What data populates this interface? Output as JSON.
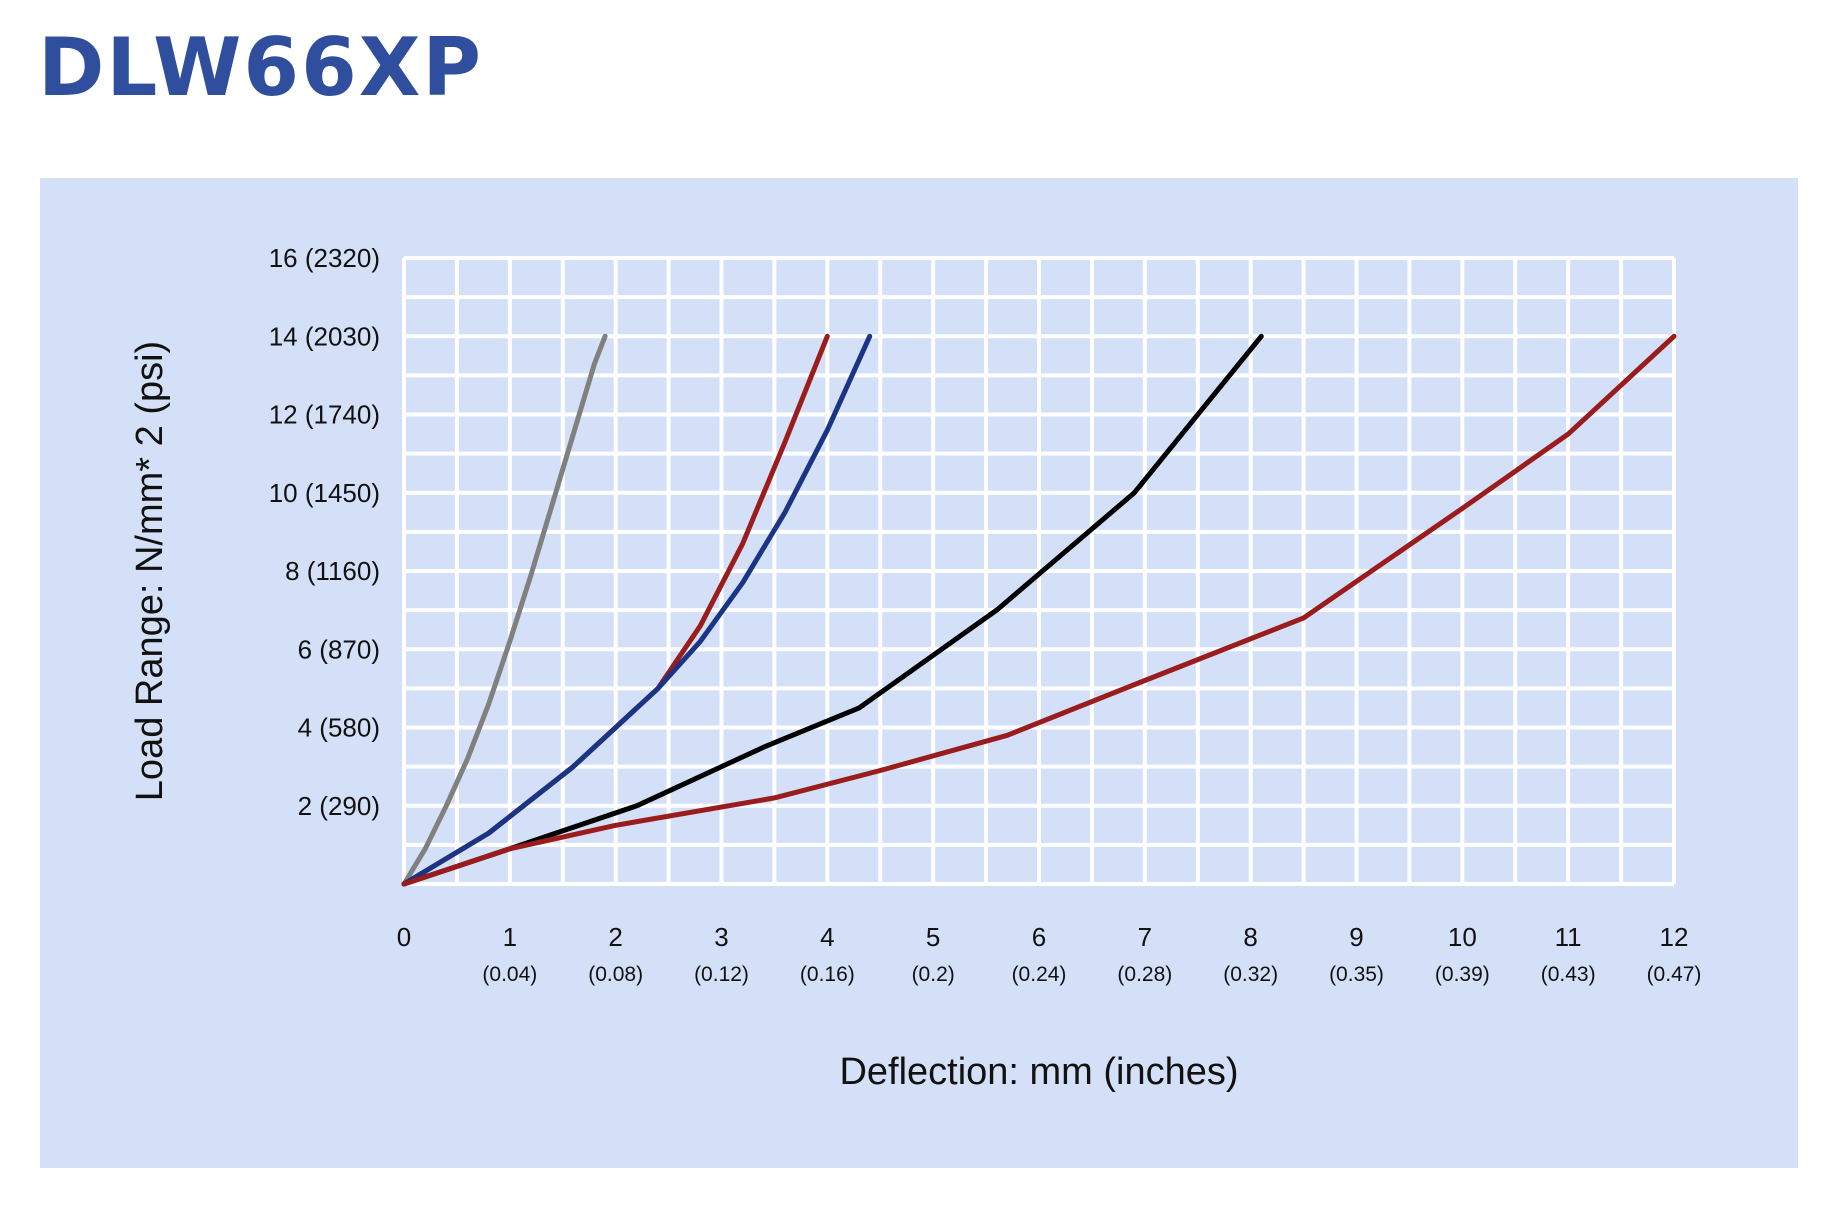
{
  "title": "DLW66XP",
  "colors": {
    "title": "#2f4e9e",
    "panel_background": "#d4e0f7",
    "plot_background": "#d4e0f7",
    "grid": "#ffffff"
  },
  "chart_data": {
    "type": "line",
    "title": "",
    "xlabel": "Deflection: mm (inches)",
    "ylabel": "Load Range: N/mm* 2 (psi)",
    "xlim": [
      0,
      12
    ],
    "ylim": [
      0,
      16
    ],
    "grid": true,
    "legend": "none",
    "x_ticks": [
      {
        "value": 0,
        "label": "0",
        "sub": ""
      },
      {
        "value": 1,
        "label": "1",
        "sub": "(0.04)"
      },
      {
        "value": 2,
        "label": "2",
        "sub": "(0.08)"
      },
      {
        "value": 3,
        "label": "3",
        "sub": "(0.12)"
      },
      {
        "value": 4,
        "label": "4",
        "sub": "(0.16)"
      },
      {
        "value": 5,
        "label": "5",
        "sub": "(0.2)"
      },
      {
        "value": 6,
        "label": "6",
        "sub": "(0.24)"
      },
      {
        "value": 7,
        "label": "7",
        "sub": "(0.28)"
      },
      {
        "value": 8,
        "label": "8",
        "sub": "(0.32)"
      },
      {
        "value": 9,
        "label": "9",
        "sub": "(0.35)"
      },
      {
        "value": 10,
        "label": "10",
        "sub": "(0.39)"
      },
      {
        "value": 11,
        "label": "11",
        "sub": "(0.43)"
      },
      {
        "value": 12,
        "label": "12",
        "sub": "(0.47)"
      }
    ],
    "y_ticks": [
      {
        "value": 2,
        "label": "2 (290)"
      },
      {
        "value": 4,
        "label": "4 (580)"
      },
      {
        "value": 6,
        "label": "6 (870)"
      },
      {
        "value": 8,
        "label": "8 (1160)"
      },
      {
        "value": 10,
        "label": "10 (1450)"
      },
      {
        "value": 12,
        "label": "12 (1740)"
      },
      {
        "value": 14,
        "label": "14 (2030)"
      },
      {
        "value": 16,
        "label": "16 (2320)"
      }
    ],
    "series": [
      {
        "color": "#808080",
        "x": [
          0,
          0.2,
          0.4,
          0.6,
          0.8,
          1.0,
          1.2,
          1.4,
          1.6,
          1.8,
          1.9
        ],
        "y": [
          0,
          0.9,
          2.0,
          3.2,
          4.6,
          6.2,
          7.9,
          9.7,
          11.5,
          13.3,
          14.0
        ]
      },
      {
        "color": "#9b1c1c",
        "x": [
          0,
          0.8,
          1.6,
          2.4,
          2.8,
          3.2,
          3.6,
          4.0
        ],
        "y": [
          0,
          1.3,
          3.0,
          5.0,
          6.6,
          8.7,
          11.3,
          14.0
        ]
      },
      {
        "color": "#1a3585",
        "x": [
          0,
          0.8,
          1.6,
          2.4,
          2.8,
          3.2,
          3.6,
          4.0,
          4.4
        ],
        "y": [
          0,
          1.3,
          3.0,
          5.0,
          6.2,
          7.7,
          9.5,
          11.6,
          14.0
        ]
      },
      {
        "color": "#000000",
        "x": [
          0,
          1.0,
          2.2,
          3.4,
          4.3,
          5.6,
          6.9,
          8.1
        ],
        "y": [
          0,
          0.9,
          2.0,
          3.5,
          4.5,
          7.0,
          10.0,
          14.0
        ]
      },
      {
        "color": "#9b1c1c",
        "x": [
          0,
          1.0,
          2.0,
          3.5,
          4.5,
          5.7,
          7.0,
          8.5,
          10.0,
          11.0,
          12.0
        ],
        "y": [
          0,
          0.9,
          1.5,
          2.2,
          2.9,
          3.8,
          5.2,
          6.8,
          9.6,
          11.5,
          14.0
        ]
      }
    ]
  }
}
